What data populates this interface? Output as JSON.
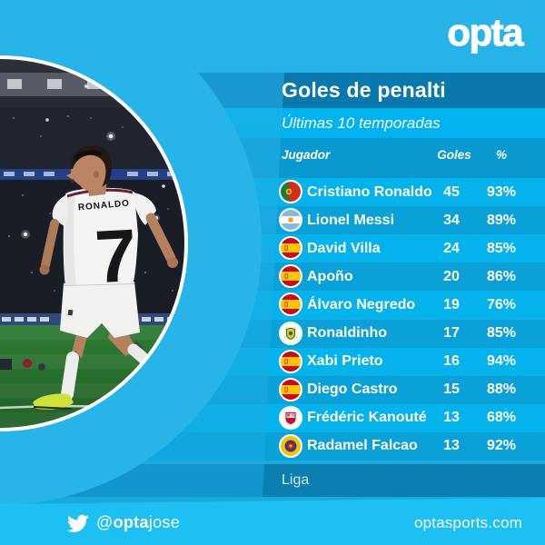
{
  "brand": {
    "logo_text": "opta",
    "twitter_at": "@",
    "twitter_bold": "opta",
    "twitter_rest": "jose",
    "website": "optasports.com"
  },
  "header": {
    "title": "Goles de penalti",
    "subtitle": "Últimas 10 temporadas"
  },
  "table": {
    "columns": [
      "Jugador",
      "Goles",
      "%"
    ],
    "rows": [
      {
        "player": "Cristiano Ronaldo",
        "flag": "portugal",
        "goals": 45,
        "pct": "93%"
      },
      {
        "player": "Lionel Messi",
        "flag": "argentina",
        "goals": 34,
        "pct": "89%"
      },
      {
        "player": "David Villa",
        "flag": "spain",
        "goals": 24,
        "pct": "85%"
      },
      {
        "player": "Apoño",
        "flag": "spain",
        "goals": 20,
        "pct": "86%"
      },
      {
        "player": "Álvaro Negredo",
        "flag": "spain",
        "goals": 19,
        "pct": "76%"
      },
      {
        "player": "Ronaldinho",
        "flag": "brazil",
        "goals": 17,
        "pct": "85%"
      },
      {
        "player": "Xabi Prieto",
        "flag": "spain",
        "goals": 16,
        "pct": "94%"
      },
      {
        "player": "Diego Castro",
        "flag": "spain",
        "goals": 15,
        "pct": "88%"
      },
      {
        "player": "Frédéric Kanouté",
        "flag": "sevilla",
        "goals": 13,
        "pct": "68%"
      },
      {
        "player": "Radamel Falcao",
        "flag": "colombia",
        "goals": 13,
        "pct": "92%"
      }
    ],
    "footer": "Liga"
  },
  "photo": {
    "jersey_name": "RONALDO",
    "jersey_number": "7"
  },
  "colors": {
    "bg": "#1fade5",
    "title-band": "#0878ad",
    "subtitle-band": "#00b3ee",
    "header-band": "#0899d1",
    "row-odd": "#04b2ec",
    "row-even": "#0aa1d9",
    "liga-band": "#0c7fb1",
    "ring": "#27b4e9",
    "bar": "#1dc0f3",
    "text": "#ffffff"
  },
  "chart_data": {
    "type": "table",
    "title": "Goles de penalti",
    "subtitle": "Últimas 10 temporadas",
    "columns": [
      "Jugador",
      "Goles",
      "%"
    ],
    "rows": [
      [
        "Cristiano Ronaldo",
        45,
        "93%"
      ],
      [
        "Lionel Messi",
        34,
        "89%"
      ],
      [
        "David Villa",
        24,
        "85%"
      ],
      [
        "Apoño",
        20,
        "86%"
      ],
      [
        "Álvaro Negredo",
        19,
        "76%"
      ],
      [
        "Ronaldinho",
        17,
        "85%"
      ],
      [
        "Xabi Prieto",
        16,
        "94%"
      ],
      [
        "Diego Castro",
        15,
        "88%"
      ],
      [
        "Frédéric Kanouté",
        13,
        "68%"
      ],
      [
        "Radamel Falcao",
        13,
        "92%"
      ]
    ],
    "footer": "Liga"
  }
}
